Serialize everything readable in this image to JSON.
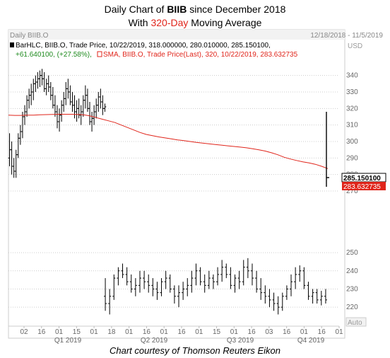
{
  "header": {
    "title_prefix": "Daily Chart of ",
    "title_ticker": "BIIB",
    "title_suffix": " since December 2018",
    "subtitle_prefix": "With ",
    "subtitle_highlight": "320-Day",
    "subtitle_suffix": " Moving Average"
  },
  "panel": {
    "label": "Daily BIIB.O",
    "date_range": "12/18/2018 - 11/5/2019",
    "currency": "USD",
    "legend_bar": "BarHLC, BIIB.O, Trade Price, 10/22/2019, 318.000000, 280.010000, 285.150100,",
    "legend_change": "+61.640100, (+27.58%),",
    "legend_sma": "SMA, BIIB.O, Trade Price(Last),  320,  10/22/2019, 283.632735",
    "last_price_label": "285.150100",
    "sma_value_label": "283.632735",
    "auto_label": "Auto"
  },
  "colors": {
    "price_bars": "#000000",
    "sma_line": "#e0251b",
    "last_price_box": "#ffffff",
    "sma_box": "#e0251b",
    "change_text": "#1e8a1e",
    "grid": "#cccccc",
    "axis_text": "#666666"
  },
  "caption": "Chart courtesy of Thomson Reuters Eikon",
  "chart_data": [
    {
      "type": "bar",
      "subtype": "ohlc",
      "scale_range": [
        270,
        345
      ],
      "ticks": [
        270,
        280,
        290,
        300,
        310,
        320,
        330,
        340
      ],
      "grid": true,
      "series": [
        {
          "name": "BarHLC",
          "ohlc": [
            [
              290,
              305,
              285,
              295
            ],
            [
              295,
              300,
              280,
              285
            ],
            [
              285,
              290,
              278,
              282
            ],
            [
              282,
              295,
              278,
              292
            ],
            [
              292,
              305,
              290,
              302
            ],
            [
              302,
              310,
              298,
              306
            ],
            [
              306,
              318,
              302,
              315
            ],
            [
              315,
              322,
              310,
              318
            ],
            [
              318,
              328,
              315,
              325
            ],
            [
              325,
              332,
              320,
              328
            ],
            [
              328,
              335,
              322,
              330
            ],
            [
              330,
              338,
              325,
              335
            ],
            [
              335,
              340,
              330,
              336
            ],
            [
              336,
              342,
              332,
              338
            ],
            [
              338,
              343,
              333,
              340
            ],
            [
              340,
              344,
              334,
              338
            ],
            [
              338,
              342,
              330,
              332
            ],
            [
              332,
              338,
              328,
              335
            ],
            [
              335,
              340,
              330,
              333
            ],
            [
              333,
              336,
              325,
              328
            ],
            [
              328,
              333,
              320,
              322
            ],
            [
              322,
              328,
              315,
              318
            ],
            [
              318,
              322,
              308,
              312
            ],
            [
              312,
              320,
              306,
              316
            ],
            [
              316,
              325,
              312,
              322
            ],
            [
              322,
              330,
              318,
              326
            ],
            [
              326,
              336,
              322,
              332
            ],
            [
              332,
              338,
              326,
              330
            ],
            [
              330,
              334,
              322,
              324
            ],
            [
              324,
              330,
              318,
              322
            ],
            [
              322,
              328,
              314,
              318
            ],
            [
              318,
              325,
              312,
              320
            ],
            [
              320,
              326,
              314,
              316
            ],
            [
              316,
              322,
              310,
              318
            ],
            [
              318,
              328,
              315,
              325
            ],
            [
              325,
              334,
              320,
              328
            ],
            [
              328,
              332,
              318,
              320
            ],
            [
              320,
              324,
              310,
              312
            ],
            [
              312,
              318,
              306,
              314
            ],
            [
              314,
              322,
              310,
              318
            ],
            [
              318,
              326,
              314,
              322
            ],
            [
              322,
              330,
              318,
              327
            ],
            [
              327,
              332,
              320,
              324
            ],
            [
              324,
              328,
              316,
              320
            ],
            [
              320,
              323,
              318,
              321
            ]
          ],
          "last_bar": {
            "date": "10/22/2019",
            "open": 280.01,
            "high": 318.0,
            "low": 280.01,
            "close": 285.1501
          },
          "change": "+61.640100",
          "change_pct": "+27.58%"
        },
        {
          "name": "SMA 320",
          "values": [
            316,
            315.8,
            315.8,
            316,
            316,
            316.2,
            316.3,
            316.4,
            316.5,
            316.5,
            316.5,
            316.4,
            316.2,
            315.5,
            314.5,
            313.5,
            312.5,
            311.5,
            310,
            308.5,
            307,
            305.5,
            304.3,
            303.5,
            302.8,
            302.2,
            301.6,
            301,
            300.5,
            300,
            299.5,
            299,
            298.6,
            298.2,
            297.8,
            297.4,
            297,
            296.6,
            296.2,
            295.6,
            295,
            294.2,
            293.2,
            292,
            290.5,
            289.4,
            288.5,
            287.7,
            287,
            286.2,
            285,
            283.6
          ],
          "last_value": 283.632735
        }
      ]
    },
    {
      "type": "bar",
      "subtype": "ohlc",
      "scale_range": [
        215,
        252
      ],
      "ticks": [
        220,
        230,
        240,
        250
      ],
      "grid": true,
      "series": [
        {
          "name": "BarHLC",
          "ohlc": [
            [
              226,
              236,
              218,
              222
            ],
            [
              222,
              230,
              216,
              226
            ],
            [
              226,
              238,
              224,
              236
            ],
            [
              236,
              242,
              232,
              240
            ],
            [
              240,
              244,
              236,
              238
            ],
            [
              238,
              242,
              232,
              234
            ],
            [
              234,
              238,
              228,
              230
            ],
            [
              230,
              236,
              226,
              232
            ],
            [
              232,
              240,
              228,
              236
            ],
            [
              236,
              240,
              230,
              234
            ],
            [
              234,
              238,
              228,
              232
            ],
            [
              232,
              236,
              226,
              230
            ],
            [
              230,
              234,
              224,
              228
            ],
            [
              228,
              236,
              226,
              234
            ],
            [
              234,
              240,
              230,
              236
            ],
            [
              236,
              238,
              228,
              230
            ],
            [
              230,
              232,
              222,
              226
            ],
            [
              226,
              232,
              220,
              228
            ],
            [
              228,
              234,
              224,
              230
            ],
            [
              230,
              236,
              226,
              232
            ],
            [
              232,
              240,
              228,
              236
            ],
            [
              236,
              244,
              232,
              240
            ],
            [
              240,
              242,
              232,
              234
            ],
            [
              234,
              238,
              228,
              232
            ],
            [
              232,
              240,
              230,
              236
            ],
            [
              236,
              238,
              230,
              234
            ],
            [
              234,
              242,
              232,
              238
            ],
            [
              238,
              246,
              234,
              242
            ],
            [
              242,
              244,
              236,
              238
            ],
            [
              238,
              242,
              230,
              232
            ],
            [
              232,
              238,
              228,
              236
            ],
            [
              236,
              240,
              230,
              234
            ],
            [
              234,
              246,
              232,
              242
            ],
            [
              242,
              247,
              236,
              240
            ],
            [
              240,
              244,
              232,
              236
            ],
            [
              236,
              240,
              228,
              230
            ],
            [
              230,
              236,
              224,
              228
            ],
            [
              228,
              232,
              222,
              226
            ],
            [
              226,
              230,
              220,
              224
            ],
            [
              224,
              228,
              218,
              222
            ],
            [
              222,
              226,
              216,
              220
            ],
            [
              220,
              228,
              218,
              226
            ],
            [
              226,
              232,
              224,
              230
            ],
            [
              230,
              238,
              226,
              234
            ],
            [
              234,
              242,
              230,
              238
            ],
            [
              238,
              243,
              234,
              240
            ],
            [
              240,
              242,
              230,
              232
            ],
            [
              232,
              234,
              224,
              226
            ],
            [
              226,
              230,
              222,
              228
            ],
            [
              228,
              230,
              222,
              224
            ],
            [
              224,
              229,
              221,
              226
            ],
            [
              226,
              230,
              222,
              224
            ]
          ]
        }
      ]
    }
  ],
  "x_axis": {
    "tick_labels": [
      "02",
      "16",
      "01",
      "15",
      "01",
      "18",
      "01",
      "16",
      "01",
      "16",
      "01",
      "15",
      "01",
      "16",
      "03",
      "16",
      "01",
      "16",
      "01"
    ],
    "period_labels": [
      "Q1 2019",
      "Q2 2019",
      "Q3 2019",
      "Q4 2019"
    ]
  }
}
